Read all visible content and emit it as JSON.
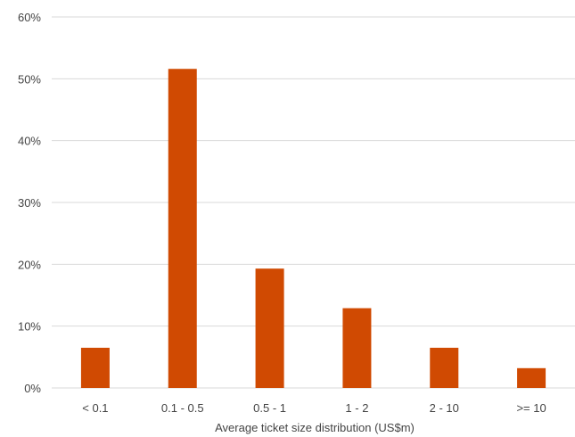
{
  "chart_data": {
    "type": "bar",
    "title": "",
    "xlabel": "Average ticket size distribution (US$m)",
    "ylabel": "",
    "categories": [
      "< 0.1",
      "0.1 - 0.5",
      "0.5 - 1",
      "1 - 2",
      "2 - 10",
      ">= 10"
    ],
    "values": [
      6.5,
      51.6,
      19.3,
      12.9,
      6.5,
      3.2
    ],
    "ylim": [
      0,
      60
    ],
    "yticks": [
      0,
      10,
      20,
      30,
      40,
      50,
      60
    ],
    "ytick_labels": [
      "0%",
      "10%",
      "20%",
      "30%",
      "40%",
      "50%",
      "60%"
    ],
    "grid": true,
    "bar_color": "#d04a02",
    "grid_color": "#d9d9d9"
  }
}
